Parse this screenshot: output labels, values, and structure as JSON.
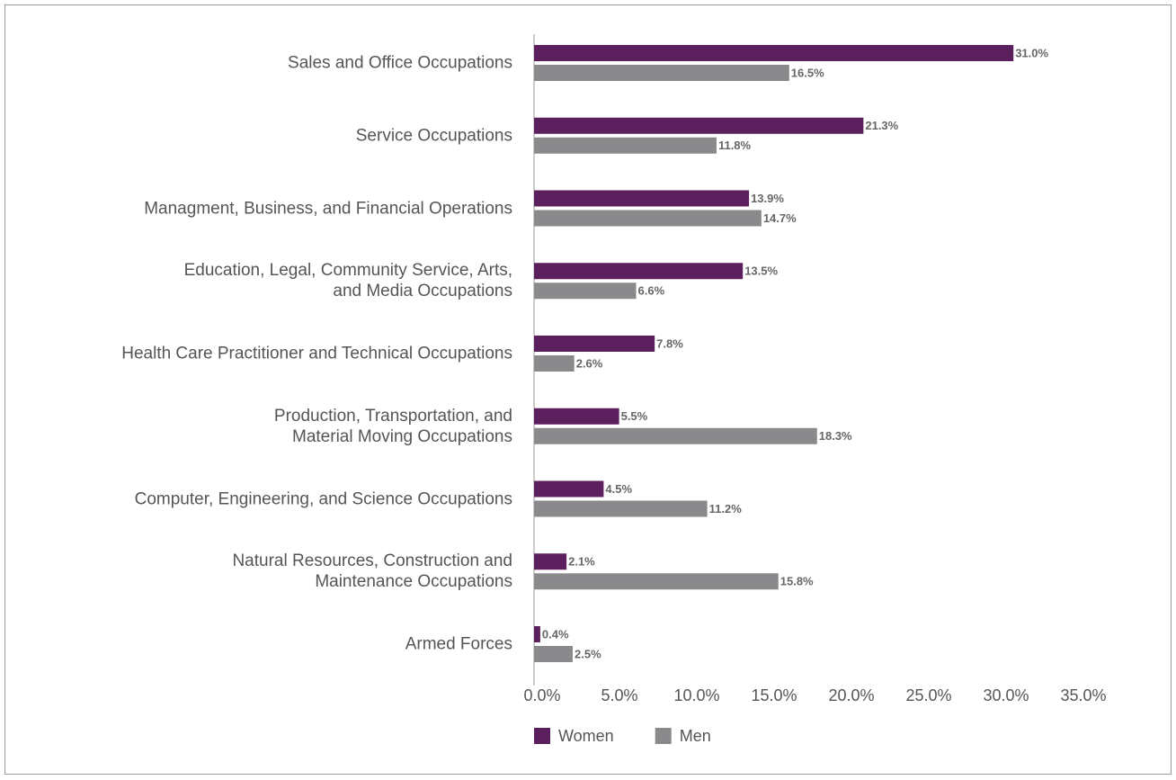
{
  "chart_data": {
    "type": "bar",
    "orientation": "horizontal",
    "categories": [
      "Sales and Office Occupations",
      "Service Occupations",
      "Managment, Business, and Financial Operations",
      "Education, Legal, Community Service, Arts,\nand Media Occupations",
      "Health Care Practitioner and Technical Occupations",
      "Production, Transportation, and\nMaterial Moving Occupations",
      "Computer, Engineering, and Science Occupations",
      "Natural Resources, Construction and\nMaintenance Occupations",
      "Armed Forces"
    ],
    "series": [
      {
        "name": "Women",
        "color": "#5c1f5e",
        "values": [
          31.0,
          21.3,
          13.9,
          13.5,
          7.8,
          5.5,
          4.5,
          2.1,
          0.4
        ],
        "value_labels": [
          "31.0%",
          "21.3%",
          "13.9%",
          "13.5%",
          "7.8%",
          "5.5%",
          "4.5%",
          "2.1%",
          "0.4%"
        ]
      },
      {
        "name": "Men",
        "color": "#8a8a8c",
        "values": [
          16.5,
          11.8,
          14.7,
          6.6,
          2.6,
          18.3,
          11.2,
          15.8,
          2.5
        ],
        "value_labels": [
          "16.5%",
          "11.8%",
          "14.7%",
          "6.6%",
          "2.6%",
          "18.3%",
          "11.2%",
          "15.8%",
          "2.5%"
        ]
      }
    ],
    "xlim": [
      0,
      35
    ],
    "xticks": [
      {
        "value": 0,
        "label": "0.0%"
      },
      {
        "value": 5,
        "label": "5.0%"
      },
      {
        "value": 10,
        "label": "10.0%"
      },
      {
        "value": 15,
        "label": "15.0%"
      },
      {
        "value": 20,
        "label": "20.0%"
      },
      {
        "value": 25,
        "label": "25.0%"
      },
      {
        "value": 30,
        "label": "30.0%"
      },
      {
        "value": 35,
        "label": "35.0%"
      }
    ],
    "legend": "bottom-left"
  }
}
